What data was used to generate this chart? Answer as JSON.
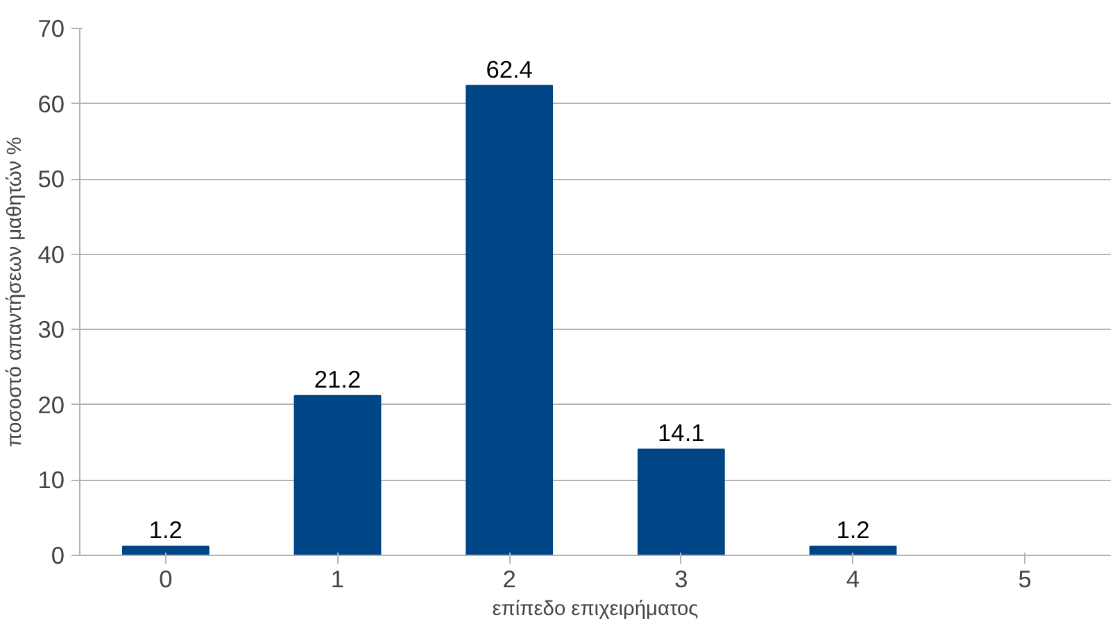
{
  "chart_data": {
    "type": "bar",
    "xlabel": "επίπεδο επιχειρήματος",
    "ylabel": "ποσοστό απαντήσεων μαθητών %",
    "categories": [
      "0",
      "1",
      "2",
      "3",
      "4",
      "5"
    ],
    "values": [
      1.2,
      21.2,
      62.4,
      14.1,
      1.2,
      null
    ],
    "color": "#004586",
    "ylim": [
      0,
      70
    ],
    "yticks": [
      0,
      10,
      20,
      30,
      40,
      50,
      60,
      70
    ],
    "grid": "y",
    "data_labels": true
  }
}
